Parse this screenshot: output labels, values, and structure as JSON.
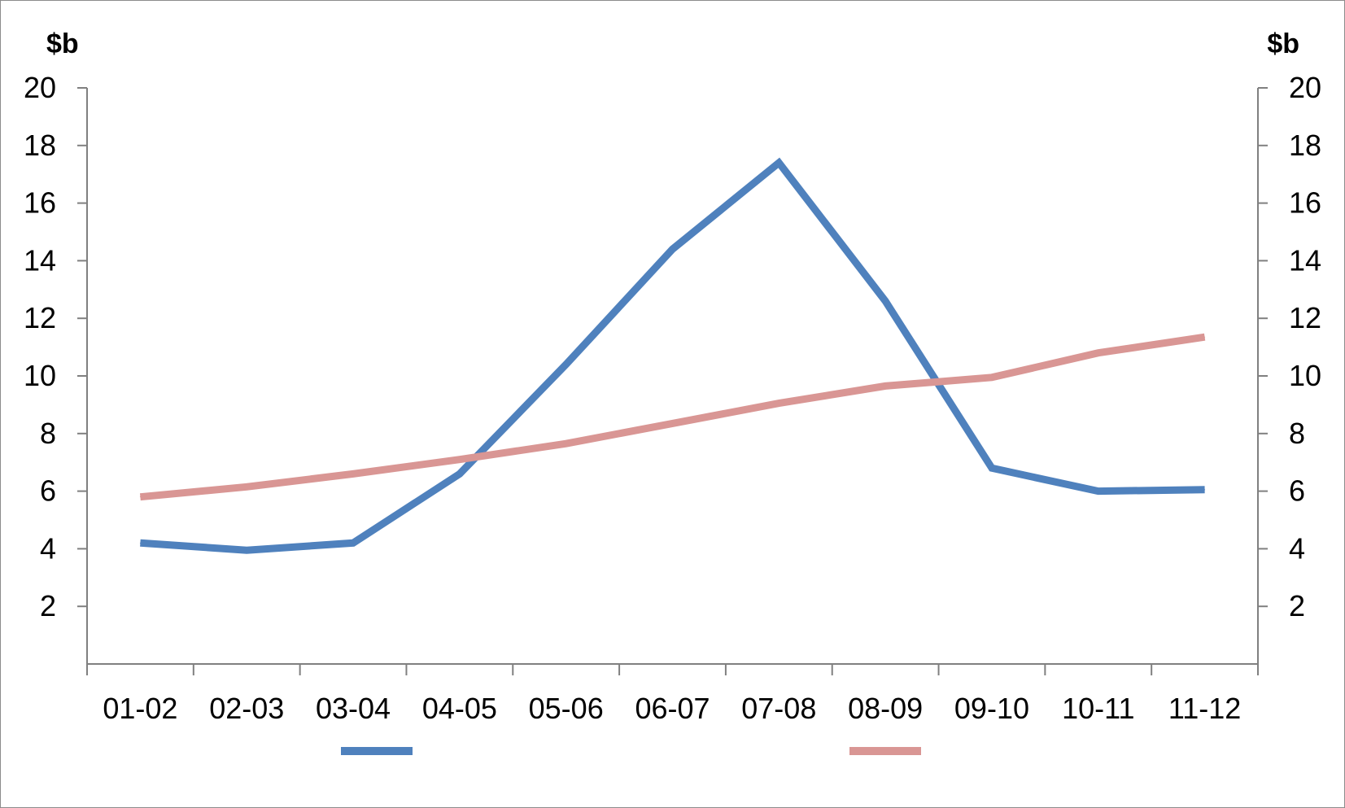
{
  "chart_data": {
    "type": "line",
    "categories": [
      "01-02",
      "02-03",
      "03-04",
      "04-05",
      "05-06",
      "06-07",
      "07-08",
      "08-09",
      "09-10",
      "10-11",
      "11-12"
    ],
    "series": [
      {
        "values": [
          4.2,
          3.95,
          4.2,
          6.6,
          10.4,
          14.4,
          17.4,
          12.6,
          6.8,
          6.0,
          6.05
        ],
        "color": "#4f81bd",
        "axis": "left"
      },
      {
        "values": [
          5.8,
          6.15,
          6.6,
          7.1,
          7.65,
          8.35,
          9.05,
          9.65,
          9.95,
          10.8,
          11.35
        ],
        "color": "#d99694",
        "axis": "right"
      }
    ],
    "y_left": {
      "unit": "$b",
      "ylim": [
        0,
        20
      ],
      "ticks": [
        2,
        4,
        6,
        8,
        10,
        12,
        14,
        16,
        18,
        20
      ]
    },
    "y_right": {
      "unit": "$b",
      "ylim": [
        0,
        20
      ],
      "ticks": [
        2,
        4,
        6,
        8,
        10,
        12,
        14,
        16,
        18,
        20
      ]
    },
    "grid": false,
    "legend": {
      "placement": "bottom"
    }
  }
}
